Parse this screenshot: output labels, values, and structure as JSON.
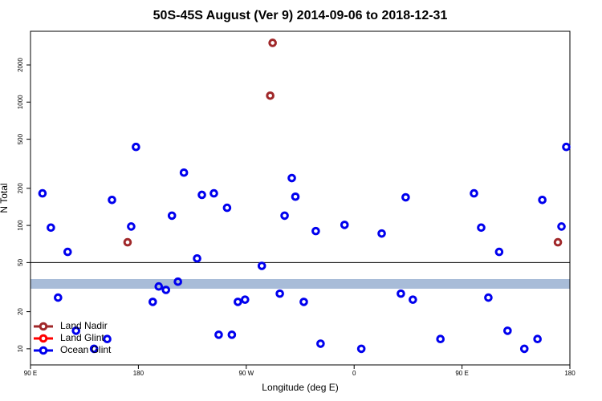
{
  "chart_data": {
    "type": "scatter",
    "title": "50S-45S August (Ver 9)   2014-09-06 to 2018-12-31",
    "x_label": "Longitude (deg E)",
    "y_label": "N Total",
    "log_y": true,
    "xlim": [
      90,
      540
    ],
    "ylim": [
      7.4,
      3750
    ],
    "xticks": [
      {
        "value": 90,
        "label": "90 E"
      },
      180,
      {
        "value": 270,
        "label": "90 W"
      },
      {
        "value": 360,
        "label": "0"
      },
      {
        "value": 450,
        "label": "90 E"
      },
      {
        "value": 540,
        "label": "180"
      }
    ],
    "yticks": [
      10,
      20,
      50,
      100,
      200,
      500,
      1000,
      2000
    ],
    "reference_line": 50,
    "legend": "bottom-left",
    "series": [
      {
        "name": "Land Nadir",
        "color": "#a0282a",
        "x": [
          292,
          290,
          171,
          530
        ],
        "values": [
          3020,
          1127,
          73,
          73
        ]
      },
      {
        "name": "Land Glint",
        "color": "#ff0000",
        "x": [],
        "values": []
      },
      {
        "name": "Ocean Glint",
        "color": "#0000ee",
        "x": [
          100,
          107,
          121,
          113,
          128,
          143,
          154,
          158,
          174,
          178,
          192,
          197,
          203,
          208,
          213,
          218,
          229,
          233,
          243,
          247,
          254,
          258,
          263,
          269,
          283,
          298,
          302,
          308,
          311,
          318,
          328,
          332,
          352,
          366,
          383,
          399,
          403,
          409,
          432,
          460,
          466,
          472,
          481,
          488,
          502,
          513,
          517,
          533,
          537
        ],
        "values": [
          182,
          96,
          61,
          26,
          14,
          10,
          12,
          161,
          98,
          433,
          24,
          32,
          30,
          120,
          35,
          268,
          54,
          177,
          182,
          13,
          139,
          13,
          24,
          25,
          47,
          28,
          120,
          242,
          171,
          24,
          90,
          11,
          101,
          10,
          86,
          28,
          169,
          25,
          12,
          182,
          96,
          26,
          61,
          14,
          10,
          12,
          161,
          98,
          433
        ]
      }
    ]
  }
}
